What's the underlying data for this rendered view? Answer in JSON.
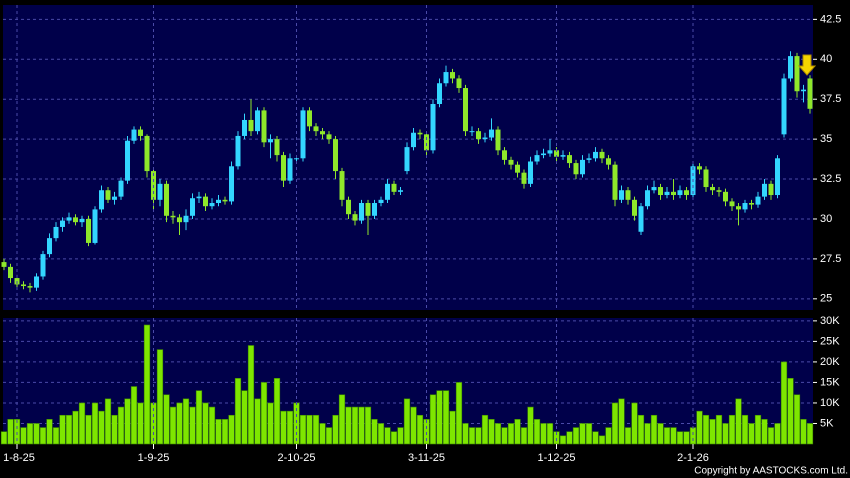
{
  "chart_data": [
    {
      "type": "candlestick",
      "up_color": "#33d6ff",
      "down_color": "#8fe82a",
      "grid": true,
      "ylim": [
        24.3,
        43.4
      ],
      "yticks": [
        25,
        27.5,
        30,
        32.5,
        35,
        37.5,
        40,
        42.5
      ],
      "open": [
        27.3,
        27.0,
        26.3,
        25.9,
        25.8,
        25.7,
        26.4,
        27.8,
        28.8,
        29.5,
        29.9,
        30.1,
        29.8,
        30.0,
        28.5,
        30.6,
        31.8,
        31.2,
        31.4,
        32.4,
        34.9,
        35.6,
        35.2,
        33.0,
        31.2,
        32.2,
        30.2,
        30.1,
        29.8,
        30.2,
        31.3,
        31.4,
        30.8,
        31.0,
        31.2,
        31.1,
        33.3,
        35.2,
        36.2,
        35.5,
        36.8,
        34.8,
        35.0,
        34.0,
        32.4,
        33.8,
        33.8,
        36.8,
        35.8,
        35.5,
        35.3,
        35.0,
        33.0,
        31.2,
        30.3,
        29.9,
        31.0,
        30.2,
        31.0,
        31.2,
        32.2,
        31.7,
        33.0,
        34.5,
        35.4,
        35.3,
        34.3,
        37.2,
        38.5,
        39.2,
        38.8,
        38.2,
        35.5,
        35.5,
        35.0,
        35.1,
        35.6,
        34.3,
        33.7,
        33.4,
        32.9,
        32.2,
        33.6,
        34.0,
        34.1,
        34.3,
        33.9,
        34.0,
        33.5,
        32.8,
        33.7,
        33.8,
        34.2,
        33.8,
        33.4,
        31.2,
        31.8,
        31.2,
        29.2,
        30.8,
        31.8,
        32.0,
        31.5,
        31.7,
        31.5,
        31.8,
        31.5,
        33.3,
        33.1,
        32.0,
        31.8,
        31.7,
        31.1,
        30.8,
        30.6,
        31.0,
        30.9,
        31.4,
        32.2,
        31.5,
        35.3,
        38.8,
        40.2,
        38.0,
        38.8
      ],
      "high": [
        27.5,
        27.2,
        26.5,
        26.1,
        26.0,
        26.6,
        28.0,
        29.1,
        29.8,
        30.1,
        30.4,
        30.3,
        30.2,
        30.2,
        30.8,
        32.1,
        32.0,
        31.7,
        32.6,
        35.2,
        35.8,
        35.8,
        35.3,
        33.2,
        32.5,
        32.4,
        30.5,
        30.3,
        30.6,
        31.6,
        31.7,
        31.6,
        31.3,
        31.5,
        31.4,
        33.6,
        35.5,
        36.6,
        37.5,
        37.0,
        37.0,
        35.3,
        35.2,
        34.2,
        34.1,
        34.0,
        37.0,
        37.0,
        36.0,
        35.7,
        35.5,
        35.2,
        33.2,
        31.4,
        30.5,
        31.2,
        31.2,
        31.2,
        31.4,
        32.5,
        32.4,
        32.0,
        34.8,
        35.7,
        35.6,
        35.5,
        37.5,
        38.8,
        39.6,
        39.4,
        39.0,
        38.4,
        35.8,
        35.7,
        35.4,
        36.3,
        35.8,
        34.5,
        33.9,
        33.6,
        33.1,
        33.9,
        34.3,
        34.4,
        35.0,
        34.5,
        34.3,
        34.2,
        33.7,
        34.0,
        34.1,
        34.5,
        34.4,
        34.0,
        33.6,
        32.1,
        32.0,
        31.4,
        31.0,
        32.1,
        32.4,
        32.2,
        32.0,
        32.5,
        32.1,
        32.0,
        33.6,
        33.5,
        33.3,
        32.2,
        32.0,
        31.9,
        31.3,
        31.0,
        31.2,
        31.2,
        31.7,
        32.5,
        32.4,
        34.0,
        39.1,
        40.5,
        40.4,
        38.4,
        39.0
      ],
      "low": [
        26.8,
        26.0,
        25.7,
        25.6,
        25.4,
        25.5,
        26.2,
        27.6,
        28.6,
        29.2,
        29.7,
        29.6,
        29.5,
        28.3,
        28.4,
        30.4,
        31.0,
        30.9,
        31.2,
        32.2,
        34.7,
        34.9,
        32.6,
        30.6,
        30.8,
        29.8,
        29.7,
        29.0,
        29.3,
        30.0,
        31.0,
        30.5,
        30.6,
        30.8,
        30.9,
        30.9,
        33.1,
        35.0,
        35.2,
        35.3,
        34.5,
        33.8,
        33.6,
        32.0,
        32.2,
        33.5,
        33.6,
        35.5,
        35.2,
        35.0,
        34.7,
        32.5,
        30.8,
        30.0,
        29.6,
        29.7,
        29.0,
        30.0,
        30.8,
        31.0,
        31.5,
        31.5,
        32.8,
        34.3,
        35.0,
        34.0,
        34.1,
        37.0,
        38.3,
        38.5,
        37.9,
        35.2,
        35.2,
        34.7,
        34.8,
        34.9,
        34.0,
        33.4,
        33.1,
        32.6,
        31.9,
        32.0,
        33.4,
        33.8,
        33.9,
        33.6,
        33.7,
        33.2,
        32.5,
        32.6,
        33.5,
        33.6,
        33.5,
        33.1,
        30.8,
        31.0,
        30.9,
        29.9,
        29.0,
        30.6,
        31.6,
        31.2,
        31.3,
        31.2,
        31.3,
        31.2,
        31.3,
        32.8,
        31.7,
        31.5,
        31.4,
        30.8,
        30.5,
        29.6,
        30.4,
        30.6,
        30.7,
        31.2,
        31.2,
        31.3,
        35.1,
        38.6,
        37.6,
        37.3,
        36.6
      ],
      "close": [
        27.0,
        26.3,
        25.9,
        25.8,
        25.7,
        26.4,
        27.8,
        28.8,
        29.5,
        29.9,
        30.1,
        29.8,
        30.0,
        28.5,
        30.6,
        31.8,
        31.2,
        31.4,
        32.4,
        34.9,
        35.6,
        35.2,
        33.0,
        31.2,
        32.2,
        30.2,
        30.1,
        29.8,
        30.2,
        31.3,
        31.4,
        30.8,
        31.0,
        31.2,
        31.1,
        33.3,
        35.2,
        36.2,
        35.5,
        36.8,
        34.8,
        35.0,
        34.0,
        32.4,
        33.8,
        33.8,
        36.8,
        35.8,
        35.5,
        35.3,
        35.0,
        33.0,
        31.2,
        30.3,
        29.9,
        31.0,
        30.2,
        31.0,
        31.2,
        32.2,
        31.7,
        31.8,
        34.5,
        35.4,
        35.3,
        34.3,
        37.2,
        38.5,
        39.2,
        38.8,
        38.2,
        35.5,
        35.5,
        35.0,
        35.1,
        35.6,
        34.3,
        33.7,
        33.4,
        32.9,
        32.2,
        33.6,
        34.0,
        34.1,
        34.3,
        33.9,
        34.0,
        33.5,
        32.8,
        33.7,
        33.8,
        34.2,
        33.8,
        33.4,
        31.2,
        31.8,
        31.2,
        30.2,
        30.8,
        31.8,
        32.0,
        31.5,
        31.7,
        31.5,
        31.8,
        31.5,
        33.3,
        33.1,
        32.0,
        31.8,
        31.7,
        31.1,
        30.8,
        30.6,
        31.0,
        30.9,
        31.4,
        32.2,
        31.5,
        33.8,
        38.8,
        40.2,
        38.0,
        38.1,
        36.9
      ]
    },
    {
      "type": "bar",
      "color": "#7ee600",
      "grid": true,
      "ylim": [
        0,
        30700
      ],
      "yticks": [
        {
          "value": 5000,
          "label": "5K"
        },
        {
          "value": 10000,
          "label": "10K"
        },
        {
          "value": 15000,
          "label": "15K"
        },
        {
          "value": 20000,
          "label": "20K"
        },
        {
          "value": 25000,
          "label": "25K"
        },
        {
          "value": 30000,
          "label": "30K"
        }
      ],
      "categories": [
        null,
        null,
        "1-8-25",
        null,
        null,
        null,
        null,
        null,
        null,
        null,
        null,
        null,
        null,
        null,
        null,
        null,
        null,
        null,
        null,
        null,
        null,
        null,
        null,
        "1-9-25",
        null,
        null,
        null,
        null,
        null,
        null,
        null,
        null,
        null,
        null,
        null,
        null,
        null,
        null,
        null,
        null,
        null,
        null,
        null,
        null,
        null,
        "2-10-25",
        null,
        null,
        null,
        null,
        null,
        null,
        null,
        null,
        null,
        null,
        null,
        null,
        null,
        null,
        null,
        null,
        null,
        null,
        null,
        "3-11-25",
        null,
        null,
        null,
        null,
        null,
        null,
        null,
        null,
        null,
        null,
        null,
        null,
        null,
        null,
        null,
        null,
        null,
        null,
        null,
        "1-12-25",
        null,
        null,
        null,
        null,
        null,
        null,
        null,
        null,
        null,
        null,
        null,
        null,
        null,
        null,
        null,
        null,
        null,
        null,
        null,
        null,
        "2-1-26",
        null,
        null,
        null,
        null,
        null,
        null,
        null,
        null,
        null,
        null,
        null,
        null,
        null,
        null,
        null,
        null,
        null,
        null
      ],
      "values": [
        3000,
        6000,
        6000,
        4000,
        5000,
        5000,
        4000,
        6000,
        4000,
        7000,
        7000,
        8000,
        10000,
        7000,
        10000,
        8000,
        11000,
        7000,
        9000,
        11000,
        14000,
        10000,
        29000,
        10000,
        23000,
        12000,
        9000,
        10000,
        11000,
        9000,
        13000,
        10000,
        9000,
        6000,
        6000,
        7000,
        16000,
        13000,
        24000,
        11000,
        15000,
        10000,
        16000,
        8000,
        8000,
        10000,
        7000,
        7000,
        7000,
        5000,
        4000,
        7000,
        12000,
        9000,
        9000,
        9000,
        9000,
        6000,
        5000,
        4000,
        3000,
        4000,
        11000,
        9000,
        7000,
        6000,
        12000,
        13000,
        13000,
        8000,
        15000,
        5000,
        4000,
        4000,
        7000,
        6000,
        5000,
        4000,
        5000,
        6000,
        4000,
        9000,
        6000,
        5000,
        5000,
        3000,
        2000,
        3000,
        4000,
        5000,
        5000,
        3000,
        2000,
        4000,
        10000,
        11000,
        4000,
        10000,
        7000,
        5000,
        7000,
        5000,
        4000,
        4000,
        3000,
        3000,
        4000,
        8000,
        7000,
        6000,
        7000,
        5000,
        7000,
        11000,
        7000,
        5000,
        7000,
        6000,
        4000,
        5000,
        20000,
        16000,
        12000,
        6000,
        5000
      ]
    }
  ],
  "copyright": "Copyright by AASTOCKS.com Ltd."
}
